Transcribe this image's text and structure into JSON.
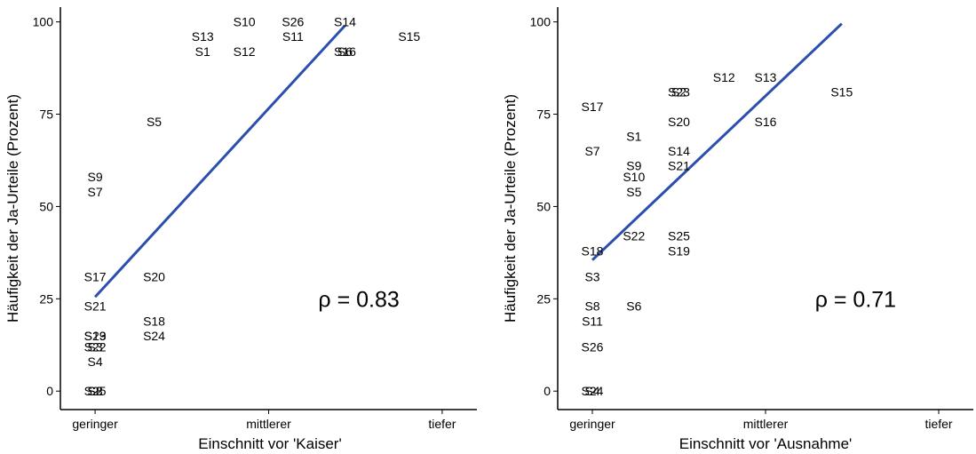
{
  "chart_data": [
    {
      "type": "scatter",
      "title": "",
      "xlabel": "Einschnitt vor 'Kaiser'",
      "ylabel": "Häufigkeit der Ja-Urteile (Prozent)",
      "x_categories": [
        "geringer",
        "mittlerer",
        "tiefer"
      ],
      "xlim": [
        0.8,
        3.2
      ],
      "ylim": [
        -5,
        104
      ],
      "y_ticks": [
        0,
        25,
        50,
        75,
        100
      ],
      "grid": false,
      "annotation": {
        "text": "ρ = 0.83",
        "x": 2.52,
        "y": 25
      },
      "regression_line": {
        "x1": 1.0,
        "y1": 25.5,
        "x2": 2.44,
        "y2": 99
      },
      "line_color": "#2c4fae",
      "points": [
        {
          "label": "S10",
          "x": 1.86,
          "y": 100
        },
        {
          "label": "S26",
          "x": 2.14,
          "y": 100
        },
        {
          "label": "S14",
          "x": 2.44,
          "y": 100
        },
        {
          "label": "S13",
          "x": 1.62,
          "y": 96
        },
        {
          "label": "S11",
          "x": 2.14,
          "y": 96
        },
        {
          "label": "S15",
          "x": 2.81,
          "y": 96
        },
        {
          "label": "S1",
          "x": 1.62,
          "y": 92
        },
        {
          "label": "S12",
          "x": 1.86,
          "y": 92
        },
        {
          "label": "S16",
          "x": 2.44,
          "y": 92
        },
        {
          "label": "S6",
          "x": 2.44,
          "y": 92
        },
        {
          "label": "S5",
          "x": 1.34,
          "y": 73
        },
        {
          "label": "S9",
          "x": 1.0,
          "y": 58
        },
        {
          "label": "S7",
          "x": 1.0,
          "y": 54
        },
        {
          "label": "S17",
          "x": 1.0,
          "y": 31
        },
        {
          "label": "S20",
          "x": 1.34,
          "y": 31
        },
        {
          "label": "S21",
          "x": 1.0,
          "y": 23
        },
        {
          "label": "S18",
          "x": 1.34,
          "y": 19
        },
        {
          "label": "S24",
          "x": 1.34,
          "y": 15
        },
        {
          "label": "S19",
          "x": 1.0,
          "y": 15
        },
        {
          "label": "S23",
          "x": 1.0,
          "y": 15
        },
        {
          "label": "S3",
          "x": 1.0,
          "y": 12
        },
        {
          "label": "S22",
          "x": 1.0,
          "y": 12
        },
        {
          "label": "S4",
          "x": 1.0,
          "y": 8
        },
        {
          "label": "S2",
          "x": 1.0,
          "y": 0
        },
        {
          "label": "S8",
          "x": 1.0,
          "y": 0
        },
        {
          "label": "S25",
          "x": 1.0,
          "y": 0
        }
      ]
    },
    {
      "type": "scatter",
      "title": "",
      "xlabel": "Einschnitt vor 'Ausnahme'",
      "ylabel": "Häufigkeit der Ja-Urteile (Prozent)",
      "x_categories": [
        "geringer",
        "mittlerer",
        "tiefer"
      ],
      "xlim": [
        0.8,
        3.2
      ],
      "ylim": [
        -5,
        104
      ],
      "y_ticks": [
        0,
        25,
        50,
        75,
        100
      ],
      "grid": false,
      "annotation": {
        "text": "ρ = 0.71",
        "x": 2.52,
        "y": 25
      },
      "regression_line": {
        "x1": 1.0,
        "y1": 35.5,
        "x2": 2.44,
        "y2": 99.5
      },
      "line_color": "#2c4fae",
      "points": [
        {
          "label": "S12",
          "x": 1.76,
          "y": 85
        },
        {
          "label": "S13",
          "x": 2.0,
          "y": 85
        },
        {
          "label": "S2",
          "x": 1.5,
          "y": 81
        },
        {
          "label": "S23",
          "x": 1.5,
          "y": 81
        },
        {
          "label": "S15",
          "x": 2.44,
          "y": 81
        },
        {
          "label": "S17",
          "x": 1.0,
          "y": 77
        },
        {
          "label": "S20",
          "x": 1.5,
          "y": 73
        },
        {
          "label": "S16",
          "x": 2.0,
          "y": 73
        },
        {
          "label": "S1",
          "x": 1.24,
          "y": 69
        },
        {
          "label": "S7",
          "x": 1.0,
          "y": 65
        },
        {
          "label": "S14",
          "x": 1.5,
          "y": 65
        },
        {
          "label": "S9",
          "x": 1.24,
          "y": 61
        },
        {
          "label": "S21",
          "x": 1.5,
          "y": 61
        },
        {
          "label": "S10",
          "x": 1.24,
          "y": 58
        },
        {
          "label": "S5",
          "x": 1.24,
          "y": 54
        },
        {
          "label": "S22",
          "x": 1.24,
          "y": 42
        },
        {
          "label": "S25",
          "x": 1.5,
          "y": 42
        },
        {
          "label": "S19",
          "x": 1.5,
          "y": 38
        },
        {
          "label": "S18",
          "x": 1.0,
          "y": 38
        },
        {
          "label": "S3",
          "x": 1.0,
          "y": 31
        },
        {
          "label": "S8",
          "x": 1.0,
          "y": 23
        },
        {
          "label": "S6",
          "x": 1.24,
          "y": 23
        },
        {
          "label": "S11",
          "x": 1.0,
          "y": 19
        },
        {
          "label": "S26",
          "x": 1.0,
          "y": 12
        },
        {
          "label": "S4",
          "x": 1.0,
          "y": 0
        },
        {
          "label": "S24",
          "x": 1.0,
          "y": 0
        }
      ]
    }
  ]
}
